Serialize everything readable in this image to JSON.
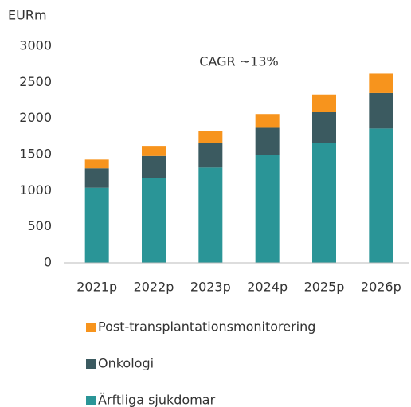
{
  "chart_data": {
    "type": "stacked_bar",
    "y_axis_label": "EURm",
    "annotation": "CAGR ~13%",
    "categories": [
      "2021p",
      "2022p",
      "2023p",
      "2024p",
      "2025p",
      "2026p"
    ],
    "series": [
      {
        "name": "Ärftliga sjukdomar",
        "color": "#2a9597",
        "values": [
          1040,
          1170,
          1320,
          1490,
          1660,
          1860
        ]
      },
      {
        "name": "Onkologi",
        "color": "#3b5a60",
        "values": [
          270,
          310,
          340,
          380,
          430,
          490
        ]
      },
      {
        "name": "Post-transplantationsmonitorering",
        "color": "#f7941d",
        "values": [
          120,
          140,
          170,
          190,
          240,
          270
        ]
      }
    ],
    "ylim": [
      0,
      3000
    ],
    "yticks": [
      0,
      500,
      1000,
      1500,
      2000,
      2500,
      3000
    ],
    "grid": false
  }
}
